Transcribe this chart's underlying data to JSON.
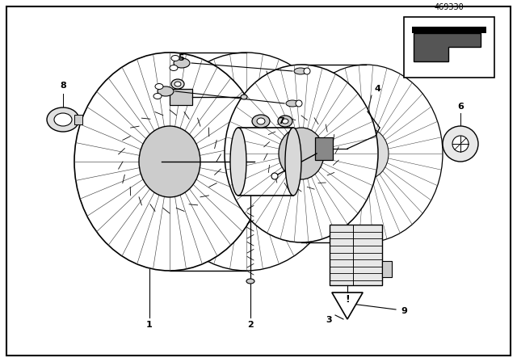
{
  "bg_color": "#ffffff",
  "border_color": "#000000",
  "part_number": "469330",
  "fig_w": 6.4,
  "fig_h": 4.48,
  "dpi": 100
}
